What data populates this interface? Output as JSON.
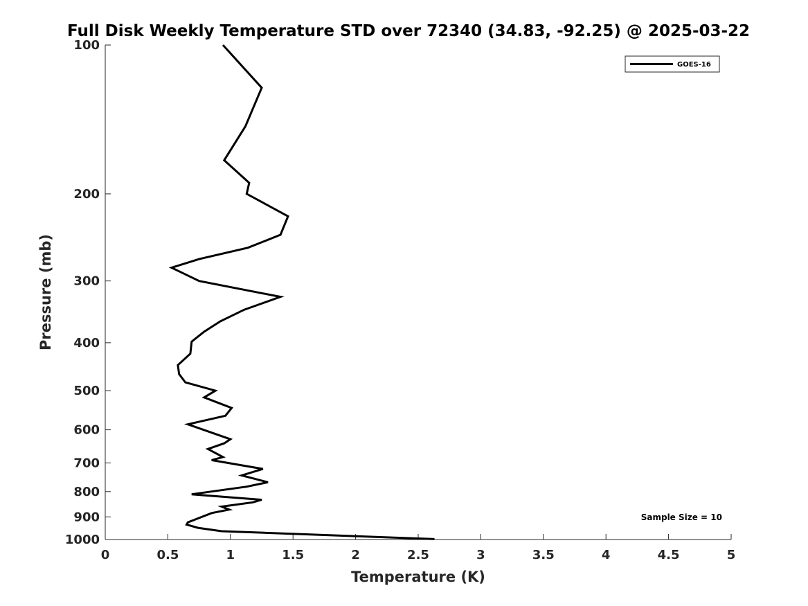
{
  "chart_data": {
    "type": "line",
    "title": "Full Disk Weekly Temperature STD over 72340 (34.83, -92.25) @ 2025-03-22",
    "xlabel": "Temperature (K)",
    "ylabel": "Pressure (mb)",
    "xlim": [
      0,
      5
    ],
    "ylim": [
      100,
      1000
    ],
    "y_scale": "log",
    "y_reversed": true,
    "x_ticks": [
      "0",
      "0.5",
      "1",
      "1.5",
      "2",
      "2.5",
      "3",
      "3.5",
      "4",
      "4.5",
      "5"
    ],
    "x_tick_values": [
      0,
      0.5,
      1,
      1.5,
      2,
      2.5,
      3,
      3.5,
      4,
      4.5,
      5
    ],
    "y_ticks": [
      "100",
      "200",
      "300",
      "400",
      "500",
      "600",
      "700",
      "800",
      "900",
      "1000"
    ],
    "y_tick_values": [
      100,
      200,
      300,
      400,
      500,
      600,
      700,
      800,
      900,
      1000
    ],
    "grid": false,
    "legend_position": "top-right",
    "series": [
      {
        "name": "GOES-16",
        "color": "#000000",
        "points": [
          [
            0.94,
            100
          ],
          [
            1.25,
            122
          ],
          [
            1.12,
            146
          ],
          [
            0.95,
            171
          ],
          [
            1.15,
            190
          ],
          [
            1.13,
            200
          ],
          [
            1.46,
            222
          ],
          [
            1.4,
            242
          ],
          [
            1.14,
            257
          ],
          [
            0.75,
            271
          ],
          [
            0.53,
            282
          ],
          [
            0.75,
            300
          ],
          [
            1.4,
            323
          ],
          [
            1.11,
            343
          ],
          [
            0.92,
            362
          ],
          [
            0.79,
            380
          ],
          [
            0.69,
            398
          ],
          [
            0.68,
            421
          ],
          [
            0.58,
            444
          ],
          [
            0.59,
            463
          ],
          [
            0.64,
            481
          ],
          [
            0.88,
            500
          ],
          [
            0.79,
            516
          ],
          [
            1.01,
            542
          ],
          [
            0.96,
            562
          ],
          [
            0.66,
            585
          ],
          [
            1.0,
            627
          ],
          [
            0.95,
            639
          ],
          [
            0.82,
            656
          ],
          [
            0.94,
            681
          ],
          [
            0.85,
            691
          ],
          [
            1.26,
            720
          ],
          [
            1.09,
            742
          ],
          [
            1.3,
            766
          ],
          [
            1.13,
            782
          ],
          [
            0.69,
            810
          ],
          [
            1.25,
            831
          ],
          [
            1.18,
            841
          ],
          [
            0.93,
            858
          ],
          [
            0.99,
            870
          ],
          [
            0.85,
            884
          ],
          [
            0.66,
            923
          ],
          [
            0.65,
            933
          ],
          [
            0.74,
            947
          ],
          [
            0.93,
            962
          ],
          [
            2.63,
            998
          ]
        ]
      }
    ],
    "annotations": [
      "Sample Size = 10"
    ]
  }
}
